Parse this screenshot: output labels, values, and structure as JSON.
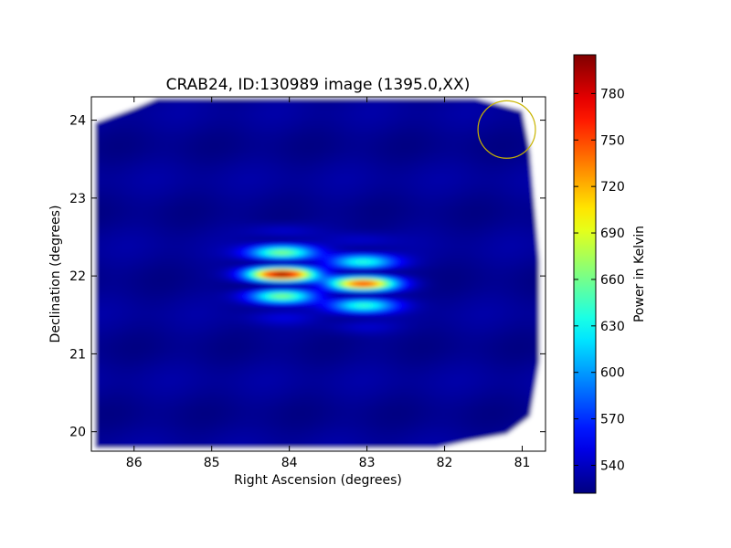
{
  "chart_data": {
    "type": "heatmap",
    "title": "CRAB24, ID:130989 image (1395.0,XX)",
    "xlabel": "Right Ascension (degrees)",
    "ylabel": "Declination (degrees)",
    "xlim": [
      86.55,
      80.7
    ],
    "ylim": [
      19.75,
      24.3
    ],
    "x_axis_reversed": true,
    "x_ticks": [
      86,
      85,
      84,
      83,
      82,
      81
    ],
    "y_ticks": [
      20,
      21,
      22,
      23,
      24
    ],
    "colorbar": {
      "label": "Power in Kelvin",
      "range": [
        522,
        805
      ],
      "ticks": [
        540,
        570,
        600,
        630,
        660,
        690,
        720,
        750,
        780
      ],
      "colormap": "jet"
    },
    "background_level": 528,
    "sources": [
      {
        "ra": 84.1,
        "dec": 22.02,
        "peak": 805
      },
      {
        "ra": 83.05,
        "dec": 21.9,
        "peak": 760
      }
    ],
    "fringe_pattern": "horizontal bands spaced about 0.3 degrees in declination around each source",
    "coverage_outline": [
      [
        86.5,
        23.97
      ],
      [
        86.0,
        24.15
      ],
      [
        85.7,
        24.28
      ],
      [
        81.6,
        24.28
      ],
      [
        81.0,
        24.12
      ],
      [
        80.9,
        23.6
      ],
      [
        80.85,
        23.0
      ],
      [
        80.78,
        22.2
      ],
      [
        80.78,
        20.9
      ],
      [
        80.9,
        20.2
      ],
      [
        81.2,
        19.97
      ],
      [
        81.7,
        19.88
      ],
      [
        82.1,
        19.79
      ],
      [
        86.5,
        19.79
      ]
    ],
    "annotation_circle": {
      "ra": 81.2,
      "dec": 23.88,
      "radius": 0.37,
      "color": "#c8b400"
    }
  }
}
